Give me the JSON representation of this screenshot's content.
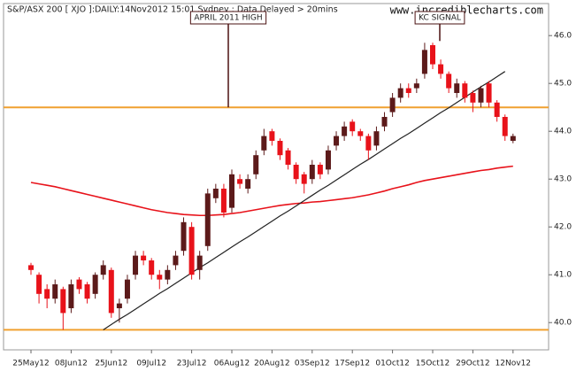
{
  "chart_data": {
    "type": "candlestick",
    "title": "S&P/ASX 200 [ XJO ]:DAILY:14Nov2012 15:01 Sydney : Data Delayed > 20mins",
    "watermark": "www.incrediblecharts.com",
    "categories": [
      "25May12",
      null,
      null,
      null,
      null,
      "08Jun12",
      null,
      null,
      null,
      null,
      "25Jun12",
      null,
      null,
      null,
      null,
      "09Jul12",
      null,
      null,
      null,
      null,
      "23Jul12",
      null,
      null,
      null,
      null,
      "06Aug12",
      null,
      null,
      null,
      null,
      "20Aug12",
      null,
      null,
      null,
      null,
      "03Sep12",
      null,
      null,
      null,
      null,
      "17Sep12",
      null,
      null,
      null,
      null,
      "01Oct12",
      null,
      null,
      null,
      null,
      "15Oct12",
      null,
      null,
      null,
      null,
      "29Oct12",
      null,
      null,
      null,
      null,
      "12Nov12"
    ],
    "open": [
      41.2,
      41.0,
      40.7,
      40.5,
      40.7,
      40.3,
      40.9,
      40.8,
      40.6,
      41.0,
      41.1,
      40.3,
      40.5,
      41.0,
      41.4,
      41.3,
      41.0,
      40.9,
      41.2,
      41.5,
      42.0,
      41.1,
      41.6,
      42.6,
      42.8,
      42.4,
      43.0,
      42.8,
      43.1,
      43.6,
      44.0,
      43.8,
      43.6,
      43.3,
      43.1,
      43.0,
      43.3,
      43.2,
      43.7,
      43.9,
      44.2,
      44.0,
      43.9,
      43.7,
      44.1,
      44.4,
      44.7,
      44.9,
      44.9,
      45.2,
      45.8,
      45.4,
      45.2,
      44.8,
      45.0,
      44.8,
      44.6,
      45.0,
      44.6,
      44.3,
      43.8
    ],
    "high": [
      41.25,
      41.05,
      40.8,
      40.9,
      40.75,
      40.9,
      40.95,
      40.85,
      41.05,
      41.3,
      41.15,
      40.5,
      41.0,
      41.5,
      41.5,
      41.35,
      41.1,
      41.2,
      41.5,
      42.2,
      42.1,
      41.5,
      42.8,
      42.9,
      42.9,
      43.2,
      43.1,
      43.1,
      43.6,
      44.05,
      44.05,
      43.85,
      43.65,
      43.35,
      43.15,
      43.4,
      43.35,
      43.7,
      44.0,
      44.2,
      44.25,
      44.05,
      43.95,
      44.1,
      44.4,
      44.8,
      45.0,
      45.0,
      45.1,
      45.85,
      45.85,
      45.5,
      45.25,
      45.1,
      45.05,
      44.85,
      44.95,
      45.05,
      44.65,
      44.35,
      43.95
    ],
    "low": [
      41.0,
      40.4,
      40.3,
      40.4,
      39.85,
      40.2,
      40.6,
      40.4,
      40.5,
      40.9,
      40.1,
      40.0,
      40.4,
      40.9,
      41.2,
      40.9,
      40.7,
      40.8,
      41.1,
      41.4,
      40.9,
      40.9,
      41.5,
      42.5,
      42.2,
      42.3,
      42.8,
      42.7,
      43.0,
      43.5,
      43.7,
      43.4,
      43.2,
      42.9,
      42.7,
      42.9,
      43.0,
      43.1,
      43.6,
      43.8,
      43.9,
      43.8,
      43.4,
      43.6,
      44.0,
      44.3,
      44.6,
      44.7,
      44.8,
      45.1,
      45.3,
      45.1,
      44.8,
      44.7,
      44.6,
      44.4,
      44.5,
      44.5,
      44.2,
      43.8,
      43.75
    ],
    "close": [
      41.1,
      40.6,
      40.5,
      40.8,
      40.2,
      40.8,
      40.7,
      40.5,
      41.0,
      41.2,
      40.2,
      40.4,
      40.9,
      41.4,
      41.3,
      41.0,
      40.9,
      41.1,
      41.4,
      42.1,
      41.0,
      41.4,
      42.7,
      42.8,
      42.3,
      43.1,
      42.9,
      43.0,
      43.5,
      43.9,
      43.8,
      43.5,
      43.3,
      43.0,
      42.9,
      43.3,
      43.1,
      43.6,
      43.9,
      44.1,
      44.0,
      43.9,
      43.6,
      44.0,
      44.3,
      44.7,
      44.9,
      44.8,
      45.0,
      45.7,
      45.4,
      45.2,
      44.9,
      45.0,
      44.7,
      44.6,
      44.9,
      44.6,
      44.3,
      43.9,
      43.9
    ],
    "up_color": "#5c1a1a",
    "down_color": "#e8121a",
    "moving_average": {
      "color": "#e8121a",
      "values": [
        42.93,
        42.9,
        42.87,
        42.84,
        42.8,
        42.76,
        42.72,
        42.68,
        42.64,
        42.6,
        42.56,
        42.52,
        42.48,
        42.44,
        42.4,
        42.36,
        42.33,
        42.3,
        42.28,
        42.26,
        42.25,
        42.24,
        42.24,
        42.25,
        42.26,
        42.28,
        42.3,
        42.33,
        42.36,
        42.39,
        42.42,
        42.45,
        42.47,
        42.49,
        42.5,
        42.52,
        42.53,
        42.55,
        42.57,
        42.59,
        42.61,
        42.64,
        42.67,
        42.71,
        42.75,
        42.8,
        42.84,
        42.88,
        42.93,
        42.97,
        43.0,
        43.03,
        43.06,
        43.09,
        43.12,
        43.15,
        43.18,
        43.2,
        43.23,
        43.25,
        43.27
      ]
    },
    "trend_line": {
      "color": "#222222",
      "values": [
        null,
        null,
        null,
        null,
        null,
        null,
        null,
        null,
        null,
        39.85,
        39.96,
        40.07,
        40.17,
        40.28,
        40.39,
        40.5,
        40.61,
        40.71,
        40.82,
        40.93,
        41.04,
        41.15,
        41.25,
        41.36,
        41.47,
        41.58,
        41.69,
        41.79,
        41.9,
        42.01,
        42.12,
        42.23,
        42.33,
        42.44,
        42.55,
        42.66,
        42.77,
        42.87,
        42.98,
        43.09,
        43.2,
        43.31,
        43.41,
        43.52,
        43.63,
        43.74,
        43.85,
        43.95,
        44.06,
        44.17,
        44.28,
        44.39,
        44.49,
        44.6,
        44.71,
        44.82,
        44.93,
        45.03,
        45.14,
        45.25,
        null
      ]
    },
    "levels": [
      44.5,
      39.85
    ],
    "level_color": "#f0a030",
    "annotations": [
      "APRIL 2011 HIGH",
      "KC SIGNAL"
    ],
    "ylim": [
      39.43,
      46.67
    ],
    "yticks": [
      {
        "value": 40,
        "label": "40.0"
      },
      {
        "value": 41,
        "label": "41.0"
      },
      {
        "value": 42,
        "label": "42.0"
      },
      {
        "value": 43,
        "label": "43.0"
      },
      {
        "value": 44,
        "label": "44.0"
      },
      {
        "value": 45,
        "label": "45.0"
      },
      {
        "value": 46,
        "label": "46.0"
      }
    ]
  }
}
